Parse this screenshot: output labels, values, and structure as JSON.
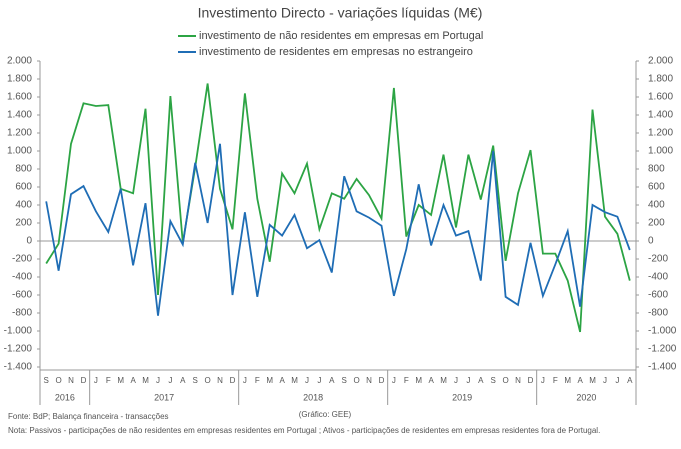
{
  "chart_data": {
    "type": "line",
    "title": "Investimento Directo - variações líquidas (M€)",
    "categories": [
      "S",
      "O",
      "N",
      "D",
      "J",
      "F",
      "M",
      "A",
      "M",
      "J",
      "J",
      "A",
      "S",
      "O",
      "N",
      "D",
      "J",
      "F",
      "M",
      "A",
      "M",
      "J",
      "J",
      "A",
      "S",
      "O",
      "N",
      "D",
      "J",
      "F",
      "M",
      "A",
      "M",
      "J",
      "J",
      "A",
      "S",
      "O",
      "N",
      "D",
      "J",
      "F",
      "M",
      "A",
      "M",
      "J",
      "J",
      "A"
    ],
    "years": [
      "2016",
      "2017",
      "2018",
      "2019",
      "2020"
    ],
    "series": [
      {
        "name": "investimento de não residentes em empresas em Portugal",
        "color": "#2ca444",
        "values": [
          -250,
          -30,
          1080,
          1530,
          1500,
          1510,
          580,
          530,
          1470,
          -600,
          1610,
          -20,
          820,
          1750,
          580,
          130,
          1640,
          470,
          -230,
          750,
          530,
          860,
          130,
          530,
          470,
          690,
          510,
          250,
          1700,
          50,
          400,
          290,
          960,
          150,
          960,
          460,
          1060,
          -220,
          530,
          1010,
          -140,
          -140,
          -440,
          -1010,
          1460,
          270,
          80,
          -440
        ]
      },
      {
        "name": "investimento de residentes em empresas no estrangeiro",
        "color": "#1f6db5",
        "values": [
          440,
          -330,
          520,
          610,
          330,
          100,
          580,
          -270,
          420,
          -830,
          220,
          -40,
          870,
          200,
          1080,
          -600,
          320,
          -620,
          180,
          60,
          290,
          -80,
          10,
          -350,
          720,
          330,
          260,
          170,
          -610,
          -90,
          630,
          -50,
          400,
          60,
          110,
          -440,
          1000,
          -620,
          -710,
          -20,
          -610,
          -260,
          110,
          -730,
          400,
          320,
          270,
          -100
        ]
      }
    ],
    "ylim": [
      -1400,
      2000
    ],
    "yticks": [
      {
        "value": 2000,
        "label": "2.000"
      },
      {
        "value": 1800,
        "label": "1.800"
      },
      {
        "value": 1600,
        "label": "1.600"
      },
      {
        "value": 1400,
        "label": "1.400"
      },
      {
        "value": 1200,
        "label": "1.200"
      },
      {
        "value": 1000,
        "label": "1.000"
      },
      800,
      600,
      400,
      200,
      0,
      -200,
      -400,
      -600,
      -800,
      {
        "value": -1000,
        "label": "-1.000"
      },
      {
        "value": -1200,
        "label": "-1.200"
      },
      {
        "value": -1400,
        "label": "-1.400"
      }
    ],
    "source": "Fonte: BdP; Balança financeira - transacções",
    "credit": "(Gráfico: GEE)",
    "note": "Nota: Passivos - participações de não residentes em empresas residentes em Portugal ; Ativos - participações de residentes em empresas residentes fora de Portugal."
  }
}
